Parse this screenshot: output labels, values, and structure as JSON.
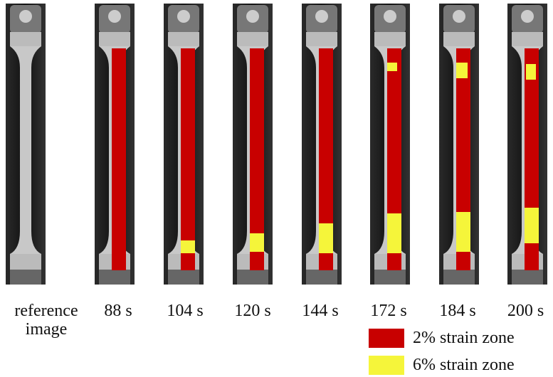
{
  "panels": [
    {
      "label": "reference image"
    },
    {
      "label": "88 s"
    },
    {
      "label": "104 s"
    },
    {
      "label": "120 s"
    },
    {
      "label": "144 s"
    },
    {
      "label": "172 s"
    },
    {
      "label": "184 s"
    },
    {
      "label": "200 s"
    }
  ],
  "legend": [
    {
      "label": "2% strain zone",
      "color": "#c80000"
    },
    {
      "label": "6% strain zone",
      "color": "#f5f53a"
    }
  ]
}
